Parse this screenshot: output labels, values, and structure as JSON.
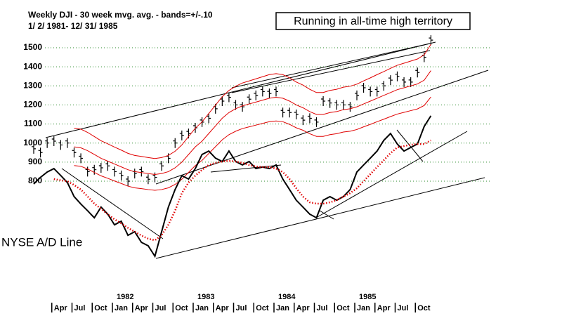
{
  "chart_data": {
    "type": "line",
    "title": "Weekly DJI - 30 week mvg. avg. - bands=+/-.10",
    "subtitle": "1/ 2/ 1981- 12/ 31/ 1985",
    "annotation": "Running in all-time high territory",
    "ad_label": "NYSE A/D Line",
    "x": [
      "1981-01",
      "1981-02",
      "1981-03",
      "1981-04",
      "1981-05",
      "1981-06",
      "1981-07",
      "1981-08",
      "1981-09",
      "1981-10",
      "1981-11",
      "1981-12",
      "1982-01",
      "1982-02",
      "1982-03",
      "1982-04",
      "1982-05",
      "1982-06",
      "1982-07",
      "1982-08",
      "1982-09",
      "1982-10",
      "1982-11",
      "1982-12",
      "1983-01",
      "1983-02",
      "1983-03",
      "1983-04",
      "1983-05",
      "1983-06",
      "1983-07",
      "1983-08",
      "1983-09",
      "1983-10",
      "1983-11",
      "1983-12",
      "1984-01",
      "1984-02",
      "1984-03",
      "1984-04",
      "1984-05",
      "1984-06",
      "1984-07",
      "1984-08",
      "1984-09",
      "1984-10",
      "1984-11",
      "1984-12",
      "1985-01",
      "1985-02",
      "1985-03",
      "1985-04",
      "1985-05",
      "1985-06",
      "1985-07",
      "1985-08",
      "1985-09",
      "1985-10",
      "1985-11",
      "1985-12"
    ],
    "xlim": [
      "1981-01",
      "1986-01"
    ],
    "xticks": [
      {
        "value": "1981-04",
        "label": "Apr"
      },
      {
        "value": "1981-07",
        "label": "Jul"
      },
      {
        "value": "1981-10",
        "label": "Oct"
      },
      {
        "value": "1982-01",
        "label": "Jan"
      },
      {
        "value": "1982-04",
        "label": "Apr"
      },
      {
        "value": "1982-07",
        "label": "Jul"
      },
      {
        "value": "1982-10",
        "label": "Oct"
      },
      {
        "value": "1983-01",
        "label": "Jan"
      },
      {
        "value": "1983-04",
        "label": "Apr"
      },
      {
        "value": "1983-07",
        "label": "Jul"
      },
      {
        "value": "1983-10",
        "label": "Oct"
      },
      {
        "value": "1984-01",
        "label": "Jan"
      },
      {
        "value": "1984-04",
        "label": "Apr"
      },
      {
        "value": "1984-07",
        "label": "Jul"
      },
      {
        "value": "1984-10",
        "label": "Oct"
      },
      {
        "value": "1985-01",
        "label": "Jan"
      },
      {
        "value": "1985-04",
        "label": "Apr"
      },
      {
        "value": "1985-07",
        "label": "Jul"
      },
      {
        "value": "1985-10",
        "label": "Oct"
      }
    ],
    "year_ticks": [
      {
        "value": "1982-01",
        "label": "1982"
      },
      {
        "value": "1983-01",
        "label": "1983"
      },
      {
        "value": "1984-01",
        "label": "1984"
      },
      {
        "value": "1985-01",
        "label": "1985"
      }
    ],
    "ylim": [
      380,
      1560
    ],
    "yticks": [
      800,
      900,
      1000,
      1100,
      1200,
      1300,
      1400,
      1500
    ],
    "grid": true,
    "series": [
      {
        "name": "Weekly DJI",
        "style": "bars",
        "color": "#000000",
        "values": [
          970,
          950,
          1000,
          1010,
          990,
          1000,
          950,
          920,
          850,
          860,
          870,
          880,
          850,
          830,
          800,
          840,
          850,
          810,
          820,
          880,
          920,
          1000,
          1040,
          1050,
          1080,
          1110,
          1130,
          1180,
          1220,
          1240,
          1200,
          1190,
          1230,
          1250,
          1270,
          1260,
          1270,
          1160,
          1160,
          1150,
          1120,
          1130,
          1110,
          1220,
          1210,
          1200,
          1200,
          1190,
          1250,
          1290,
          1270,
          1270,
          1300,
          1330,
          1350,
          1320,
          1320,
          1370,
          1450,
          1540
        ]
      },
      {
        "name": "30 week mvg. avg.",
        "style": "line",
        "color": "#e00000",
        "values": [
          null,
          null,
          null,
          null,
          null,
          null,
          980,
          975,
          960,
          940,
          920,
          905,
          890,
          875,
          860,
          850,
          845,
          840,
          835,
          840,
          850,
          870,
          900,
          940,
          980,
          1010,
          1050,
          1090,
          1130,
          1160,
          1180,
          1195,
          1205,
          1215,
          1225,
          1235,
          1240,
          1235,
          1220,
          1200,
          1185,
          1165,
          1150,
          1150,
          1160,
          1165,
          1175,
          1180,
          1190,
          1205,
          1220,
          1235,
          1250,
          1265,
          1280,
          1290,
          1300,
          1310,
          1330,
          1380
        ]
      },
      {
        "name": "upper band",
        "style": "line",
        "color": "#e00000",
        "values": [
          null,
          null,
          null,
          null,
          null,
          null,
          1078,
          1073,
          1056,
          1034,
          1012,
          996,
          979,
          963,
          946,
          935,
          930,
          924,
          919,
          924,
          935,
          957,
          990,
          1034,
          1078,
          1111,
          1155,
          1199,
          1243,
          1276,
          1298,
          1315,
          1326,
          1337,
          1348,
          1359,
          1364,
          1359,
          1342,
          1320,
          1304,
          1282,
          1265,
          1265,
          1276,
          1282,
          1293,
          1298,
          1309,
          1326,
          1342,
          1359,
          1375,
          1392,
          1408,
          1419,
          1430,
          1441,
          1463,
          1518
        ]
      },
      {
        "name": "lower band",
        "style": "line",
        "color": "#e00000",
        "values": [
          null,
          null,
          null,
          null,
          null,
          null,
          882,
          878,
          864,
          846,
          828,
          815,
          801,
          788,
          774,
          765,
          761,
          756,
          752,
          756,
          765,
          783,
          810,
          846,
          882,
          909,
          945,
          981,
          1017,
          1044,
          1062,
          1076,
          1085,
          1094,
          1103,
          1112,
          1116,
          1112,
          1098,
          1080,
          1067,
          1049,
          1035,
          1035,
          1044,
          1049,
          1058,
          1062,
          1071,
          1085,
          1098,
          1112,
          1125,
          1139,
          1152,
          1161,
          1170,
          1179,
          1197,
          1242
        ]
      },
      {
        "name": "NYSE A/D Line",
        "style": "thick",
        "color": "#000000",
        "values": [
          785,
          820,
          848,
          866,
          830,
          793,
          719,
          680,
          645,
          608,
          664,
          627,
          571,
          590,
          516,
          535,
          479,
          461,
          406,
          535,
          664,
          756,
          829,
          811,
          866,
          940,
          958,
          921,
          903,
          958,
          903,
          885,
          903,
          866,
          874,
          866,
          885,
          811,
          756,
          700,
          664,
          627,
          608,
          700,
          719,
          700,
          719,
          756,
          848,
          885,
          921,
          958,
          1014,
          1050,
          995,
          958,
          977,
          995,
          1087,
          1143
        ]
      },
      {
        "name": "A/D mvg. avg.",
        "style": "dotted",
        "color": "#e00000",
        "values": [
          null,
          null,
          null,
          811,
          805,
          800,
          780,
          756,
          720,
          682,
          655,
          627,
          600,
          579,
          555,
          535,
          515,
          498,
          490,
          516,
          571,
          645,
          737,
          793,
          829,
          859,
          885,
          896,
          903,
          907,
          903,
          896,
          885,
          877,
          874,
          874,
          866,
          848,
          811,
          763,
          719,
          689,
          682,
          682,
          689,
          700,
          719,
          737,
          763,
          800,
          837,
          874,
          910,
          947,
          977,
          984,
          991,
          995,
          995,
          1014
        ]
      }
    ]
  }
}
